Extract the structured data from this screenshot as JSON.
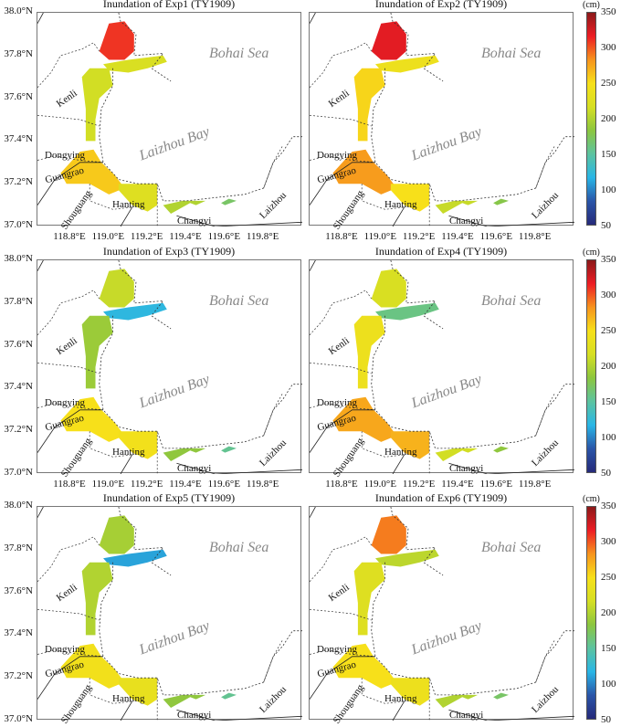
{
  "colorbar": {
    "unit": "(cm)",
    "ticks": [
      "350",
      "300",
      "250",
      "200",
      "150",
      "100",
      "50"
    ],
    "range": [
      50,
      350
    ],
    "colors": [
      "#262a7a",
      "#2a55a8",
      "#29b6e6",
      "#5cc3a0",
      "#8cc63f",
      "#d6df23",
      "#f7e01a",
      "#f7941d",
      "#ed1c24",
      "#8b1a1a"
    ]
  },
  "axes": {
    "yticks": [
      "38.0°N",
      "37.8°N",
      "37.6°N",
      "37.4°N",
      "37.2°N",
      "37.0°N"
    ],
    "xticks": [
      "118.8°E",
      "119.0°E",
      "119.2°E",
      "119.4°E",
      "119.6°E",
      "119.8°E"
    ]
  },
  "labels": {
    "bohai": "Bohai Sea",
    "bay": "Laizhou Bay",
    "kenli": "Kenli",
    "dongying": "Dongying",
    "guangrao": "Guangrao",
    "shouguang": "Shouguang",
    "hanting": "Hanting",
    "changyi": "Changyi",
    "laizhou": "Laizhou"
  },
  "panels": [
    {
      "title": "Inundation of Exp1 (TY1909)",
      "inundation_cm": {
        "north": 310,
        "neck": 220,
        "west": 215,
        "south": 260,
        "hanting": 225,
        "east": 200
      }
    },
    {
      "title": "Inundation of Exp2 (TY1909)",
      "inundation_cm": {
        "north": 320,
        "neck": 240,
        "west": 255,
        "south": 280,
        "hanting": 250,
        "east": 210
      }
    },
    {
      "title": "Inundation of Exp3 (TY1909)",
      "inundation_cm": {
        "north": 210,
        "neck": 120,
        "west": 190,
        "south": 250,
        "hanting": 245,
        "east": 185
      }
    },
    {
      "title": "Inundation of Exp4 (TY1909)",
      "inundation_cm": {
        "north": 220,
        "neck": 160,
        "west": 240,
        "south": 275,
        "hanting": 270,
        "east": 215
      }
    },
    {
      "title": "Inundation of Exp5 (TY1909)",
      "inundation_cm": {
        "north": 195,
        "neck": 110,
        "west": 200,
        "south": 245,
        "hanting": 235,
        "east": 185
      }
    },
    {
      "title": "Inundation of Exp6 (TY1909)",
      "inundation_cm": {
        "north": 290,
        "neck": 205,
        "west": 225,
        "south": 250,
        "hanting": 240,
        "east": 200
      }
    }
  ]
}
